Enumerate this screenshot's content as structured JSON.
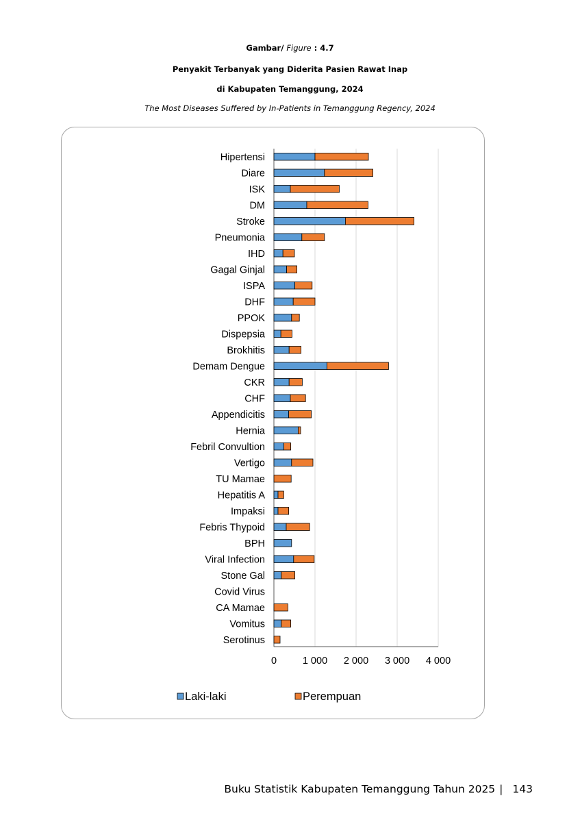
{
  "caption": {
    "label": "Gambar/",
    "label_en": "Figure",
    "number": ": 4.7",
    "title_line1": "Penyakit Terbanyak yang Diderita Pasien Rawat Inap",
    "title_line2": "di Kabupaten Temanggung, 2024",
    "title_en": "The Most Diseases Suffered by In-Patients in Temanggung Regency, 2024"
  },
  "footer": {
    "text": "Buku Statistik Kabupaten Temanggung Tahun 2025",
    "separator": "|",
    "page": "143"
  },
  "colors": {
    "laki": "#5b9bd5",
    "perempuan": "#ed7d31",
    "gridline": "#d9d9d9"
  },
  "chart_data": {
    "type": "bar",
    "orientation": "horizontal",
    "stacked": true,
    "categories": [
      "Hipertensi",
      "Diare",
      "ISK",
      "DM",
      "Stroke",
      "Pneumonia",
      "IHD",
      "Gagal Ginjal",
      "ISPA",
      "DHF",
      "PPOK",
      "Dispepsia",
      "Brokhitis",
      "Demam Dengue",
      "CKR",
      "CHF",
      "Appendicitis",
      "Hernia",
      "Febril Convultion",
      "Vertigo",
      "TU Mamae",
      "Hepatitis A",
      "Impaksi",
      "Febris Thypoid",
      "BPH",
      "Viral Infection",
      "Stone Gal",
      "Covid Virus",
      "CA Mamae",
      "Vomitus",
      "Serotinus"
    ],
    "series": [
      {
        "name": "Laki-laki",
        "values": [
          1000,
          1230,
          400,
          800,
          1740,
          680,
          220,
          310,
          510,
          470,
          430,
          170,
          370,
          1290,
          370,
          400,
          360,
          590,
          240,
          430,
          0,
          100,
          100,
          300,
          430,
          480,
          180,
          0,
          0,
          180,
          0
        ]
      },
      {
        "name": "Perempuan",
        "values": [
          1300,
          1180,
          1190,
          1490,
          1670,
          550,
          280,
          250,
          420,
          530,
          190,
          270,
          290,
          1500,
          320,
          370,
          550,
          60,
          170,
          520,
          420,
          140,
          260,
          570,
          0,
          500,
          330,
          0,
          340,
          230,
          150
        ]
      }
    ],
    "xlim": [
      0,
      4000
    ],
    "xticks": [
      0,
      1000,
      2000,
      3000,
      4000
    ],
    "xtick_labels": [
      "0",
      "1 000",
      "2 000",
      "3 000",
      "4 000"
    ],
    "grid": true,
    "legend_position": "bottom"
  }
}
